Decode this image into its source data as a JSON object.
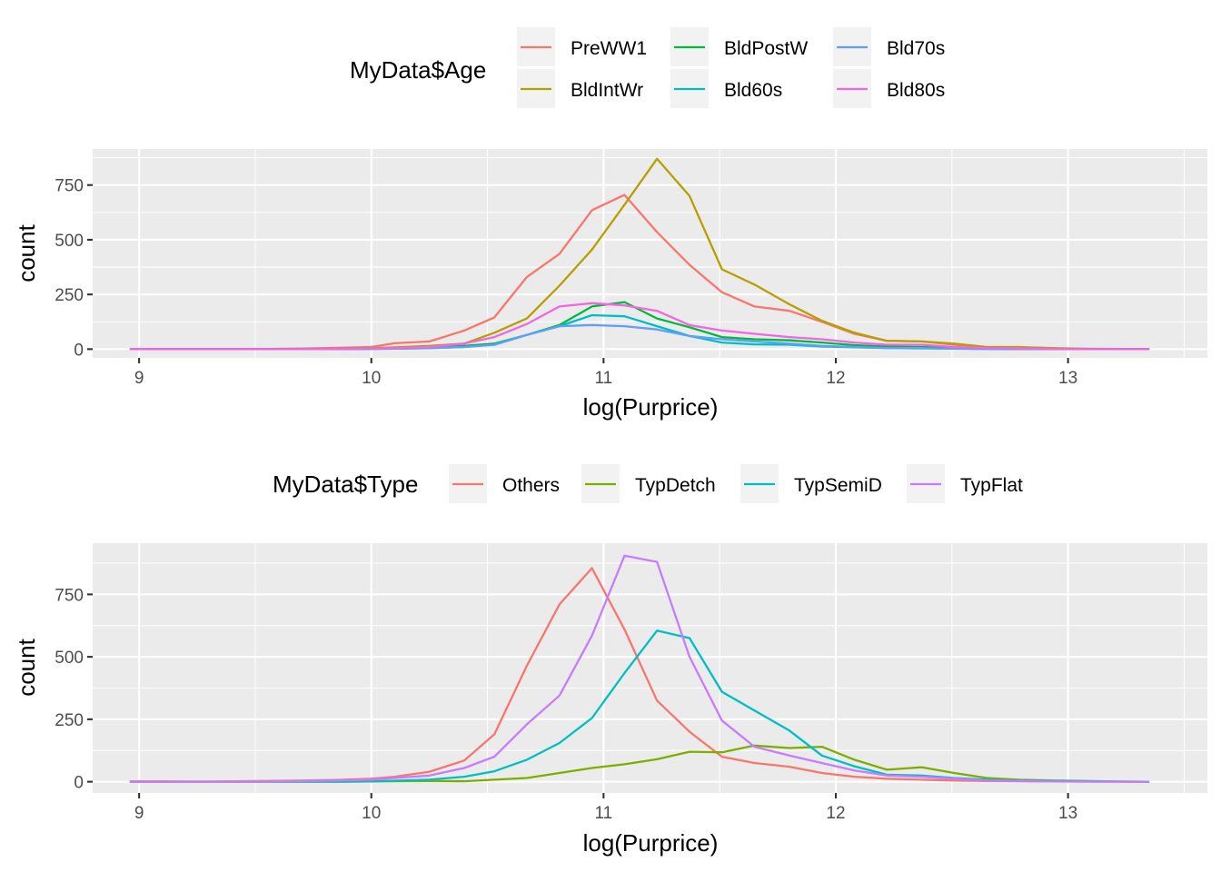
{
  "chart_data": [
    {
      "type": "line",
      "xlabel": "log(Purprice)",
      "ylabel": "count",
      "xlim": [
        8.8,
        13.6
      ],
      "ylim": [
        -40,
        915
      ],
      "xticks": [
        9,
        10,
        11,
        12,
        13
      ],
      "xtick_labels": [
        "9",
        "10",
        "11",
        "12",
        "13"
      ],
      "yticks": [
        0,
        250,
        500,
        750
      ],
      "ytick_labels": [
        "0",
        "250",
        "500",
        "750"
      ],
      "grid": true,
      "legend": {
        "title": "MyData$Age",
        "position": "top",
        "ncol": 3
      },
      "x": [
        8.96,
        9.1,
        9.25,
        9.4,
        9.55,
        9.7,
        9.85,
        10.0,
        10.1,
        10.25,
        10.4,
        10.53,
        10.67,
        10.81,
        10.95,
        11.09,
        11.23,
        11.37,
        11.51,
        11.65,
        11.8,
        11.94,
        12.08,
        12.22,
        12.37,
        12.51,
        12.65,
        12.79,
        12.93,
        13.07,
        13.21,
        13.35
      ],
      "series": [
        {
          "name": "PreWW1",
          "color": "#F8766D",
          "values": [
            0,
            0,
            0,
            0,
            1,
            3,
            6,
            10,
            27,
            35,
            85,
            145,
            330,
            435,
            635,
            705,
            535,
            385,
            260,
            195,
            175,
            125,
            70,
            38,
            35,
            20,
            5,
            5,
            2,
            1,
            0,
            0
          ]
        },
        {
          "name": "BldIntWr",
          "color": "#B79F00",
          "values": [
            0,
            0,
            0,
            0,
            0,
            1,
            2,
            5,
            8,
            15,
            25,
            75,
            140,
            290,
            455,
            660,
            870,
            700,
            365,
            295,
            205,
            130,
            75,
            38,
            35,
            25,
            10,
            10,
            5,
            2,
            1,
            0
          ]
        },
        {
          "name": "BldPostW",
          "color": "#00BA38",
          "values": [
            0,
            0,
            0,
            0,
            0,
            0,
            1,
            2,
            3,
            6,
            15,
            25,
            65,
            110,
            195,
            215,
            140,
            100,
            55,
            45,
            40,
            30,
            18,
            12,
            10,
            5,
            2,
            1,
            0,
            0,
            0,
            0
          ]
        },
        {
          "name": "Bld60s",
          "color": "#00BFC4",
          "values": [
            0,
            0,
            0,
            0,
            0,
            0,
            0,
            1,
            2,
            4,
            10,
            20,
            65,
            105,
            155,
            150,
            105,
            60,
            30,
            22,
            20,
            12,
            8,
            5,
            3,
            2,
            1,
            0,
            0,
            0,
            0,
            0
          ]
        },
        {
          "name": "Bld70s",
          "color": "#619CFF",
          "values": [
            0,
            0,
            0,
            0,
            0,
            0,
            0,
            1,
            2,
            5,
            10,
            20,
            65,
            105,
            110,
            105,
            90,
            60,
            45,
            35,
            25,
            15,
            10,
            5,
            5,
            2,
            1,
            0,
            0,
            0,
            0,
            0
          ]
        },
        {
          "name": "Bld80s",
          "color": "#F564E3",
          "values": [
            0,
            0,
            0,
            0,
            0,
            0,
            1,
            3,
            5,
            10,
            25,
            55,
            115,
            195,
            210,
            200,
            175,
            110,
            85,
            70,
            55,
            45,
            30,
            20,
            20,
            10,
            5,
            3,
            1,
            0,
            0,
            0
          ]
        }
      ]
    },
    {
      "type": "line",
      "xlabel": "log(Purprice)",
      "ylabel": "count",
      "xlim": [
        8.8,
        13.6
      ],
      "ylim": [
        -45,
        955
      ],
      "xticks": [
        9,
        10,
        11,
        12,
        13
      ],
      "xtick_labels": [
        "9",
        "10",
        "11",
        "12",
        "13"
      ],
      "yticks": [
        0,
        250,
        500,
        750
      ],
      "ytick_labels": [
        "0",
        "250",
        "500",
        "750"
      ],
      "grid": true,
      "legend": {
        "title": "MyData$Type",
        "position": "top",
        "ncol": 4
      },
      "x": [
        8.96,
        9.1,
        9.25,
        9.4,
        9.55,
        9.7,
        9.85,
        10.0,
        10.1,
        10.25,
        10.4,
        10.53,
        10.67,
        10.81,
        10.95,
        11.09,
        11.23,
        11.37,
        11.51,
        11.65,
        11.8,
        11.94,
        12.08,
        12.22,
        12.37,
        12.51,
        12.65,
        12.79,
        12.93,
        13.07,
        13.21,
        13.35
      ],
      "series": [
        {
          "name": "Others",
          "color": "#F8766D",
          "values": [
            2,
            2,
            1,
            2,
            3,
            5,
            7,
            12,
            20,
            40,
            85,
            190,
            465,
            710,
            855,
            610,
            325,
            200,
            100,
            75,
            60,
            35,
            20,
            12,
            8,
            5,
            3,
            2,
            1,
            1,
            0,
            0
          ]
        },
        {
          "name": "TypDetch",
          "color": "#7CAE00",
          "values": [
            0,
            0,
            0,
            0,
            0,
            0,
            0,
            1,
            2,
            3,
            2,
            8,
            15,
            35,
            55,
            70,
            90,
            120,
            118,
            145,
            135,
            140,
            88,
            48,
            58,
            35,
            15,
            8,
            5,
            3,
            1,
            0
          ]
        },
        {
          "name": "TypSemiD",
          "color": "#00BFC4",
          "values": [
            0,
            0,
            0,
            0,
            0,
            0,
            0,
            2,
            4,
            8,
            20,
            42,
            88,
            155,
            255,
            435,
            605,
            575,
            360,
            285,
            205,
            105,
            62,
            28,
            25,
            15,
            8,
            5,
            3,
            2,
            1,
            0
          ]
        },
        {
          "name": "TypFlat",
          "color": "#C77CFF",
          "values": [
            0,
            0,
            0,
            0,
            1,
            3,
            5,
            8,
            15,
            25,
            55,
            100,
            230,
            345,
            585,
            905,
            880,
            500,
            245,
            140,
            105,
            75,
            45,
            25,
            20,
            12,
            5,
            3,
            1,
            0,
            0,
            0
          ]
        }
      ]
    }
  ]
}
